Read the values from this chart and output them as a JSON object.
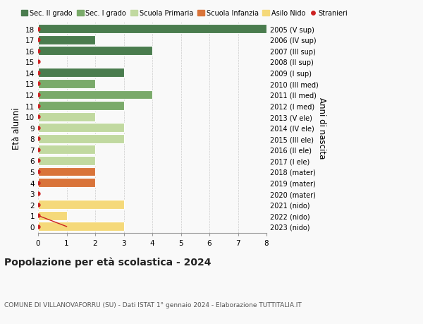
{
  "ages": [
    18,
    17,
    16,
    15,
    14,
    13,
    12,
    11,
    10,
    9,
    8,
    7,
    6,
    5,
    4,
    3,
    2,
    1,
    0
  ],
  "right_labels": [
    "2005 (V sup)",
    "2006 (IV sup)",
    "2007 (III sup)",
    "2008 (II sup)",
    "2009 (I sup)",
    "2010 (III med)",
    "2011 (II med)",
    "2012 (I med)",
    "2013 (V ele)",
    "2014 (IV ele)",
    "2015 (III ele)",
    "2016 (II ele)",
    "2017 (I ele)",
    "2018 (mater)",
    "2019 (mater)",
    "2020 (mater)",
    "2021 (nido)",
    "2022 (nido)",
    "2023 (nido)"
  ],
  "bar_values": [
    8,
    2,
    4,
    0,
    3,
    2,
    4,
    3,
    2,
    3,
    3,
    2,
    2,
    2,
    2,
    0,
    3,
    1,
    3
  ],
  "bar_colors": [
    "#4a7c4e",
    "#4a7c4e",
    "#4a7c4e",
    "#4a7c4e",
    "#4a7c4e",
    "#7aaa6a",
    "#7aaa6a",
    "#7aaa6a",
    "#c1d9a0",
    "#c1d9a0",
    "#c1d9a0",
    "#c1d9a0",
    "#c1d9a0",
    "#d9743a",
    "#d9743a",
    "#d9743a",
    "#f5d97a",
    "#f5d97a",
    "#f5d97a"
  ],
  "legend_labels": [
    "Sec. II grado",
    "Sec. I grado",
    "Scuola Primaria",
    "Scuola Infanzia",
    "Asilo Nido",
    "Stranieri"
  ],
  "legend_colors": [
    "#4a7c4e",
    "#7aaa6a",
    "#c1d9a0",
    "#d9743a",
    "#f5d97a",
    "#cc2222"
  ],
  "title": "Popolazione per età scolastica - 2024",
  "subtitle": "COMUNE DI VILLANOVAFORRU (SU) - Dati ISTAT 1° gennaio 2024 - Elaborazione TUTTITALIA.IT",
  "ylabel_left": "Età alunni",
  "ylabel_right": "Anni di nascita",
  "xlim": [
    0,
    8
  ],
  "xticks": [
    0,
    1,
    2,
    3,
    4,
    5,
    6,
    7,
    8
  ],
  "background_color": "#f9f9f9",
  "grid_color": "#cccccc"
}
